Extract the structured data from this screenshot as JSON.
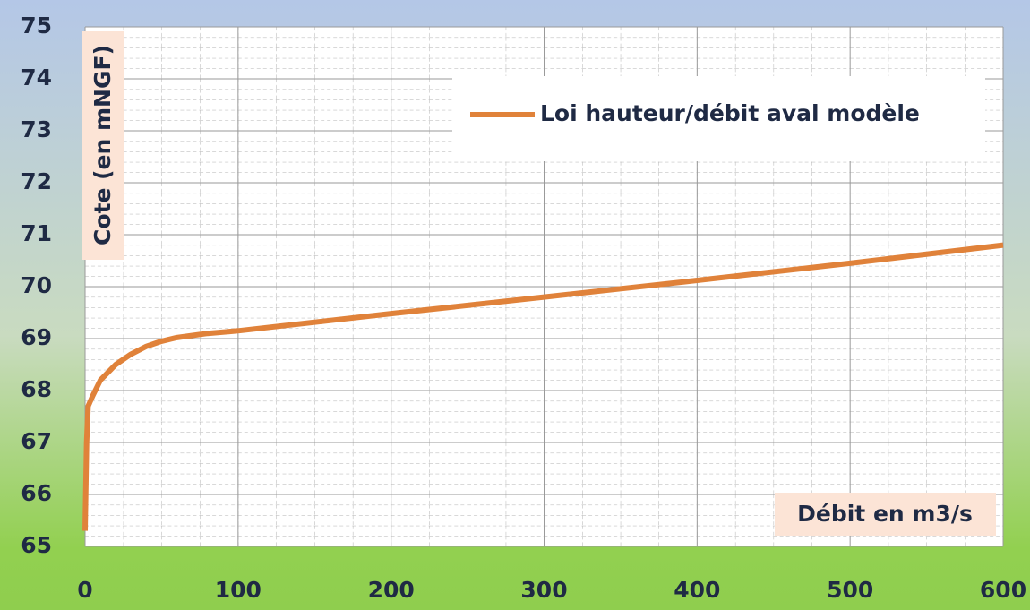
{
  "chart_data": {
    "type": "line",
    "x_label": "Débit en m3/s",
    "y_label": "Cote (en mNGF)",
    "x": [
      0,
      1,
      2,
      5,
      10,
      20,
      30,
      40,
      50,
      60,
      80,
      100,
      200,
      300,
      400,
      500,
      600
    ],
    "series": [
      {
        "name": "Loi hauteur/débit aval modèle",
        "color": "#e0823a",
        "values": [
          65.3,
          67.0,
          67.7,
          67.9,
          68.2,
          68.5,
          68.7,
          68.85,
          68.95,
          69.02,
          69.1,
          69.15,
          69.48,
          69.8,
          70.12,
          70.45,
          70.8
        ]
      }
    ],
    "xlim": [
      0,
      600
    ],
    "xticks": [
      0,
      100,
      200,
      300,
      400,
      500,
      600
    ],
    "ylim": [
      65,
      75
    ],
    "yticks": [
      65,
      66,
      67,
      68,
      69,
      70,
      71,
      72,
      73,
      74,
      75
    ],
    "grid": true
  }
}
